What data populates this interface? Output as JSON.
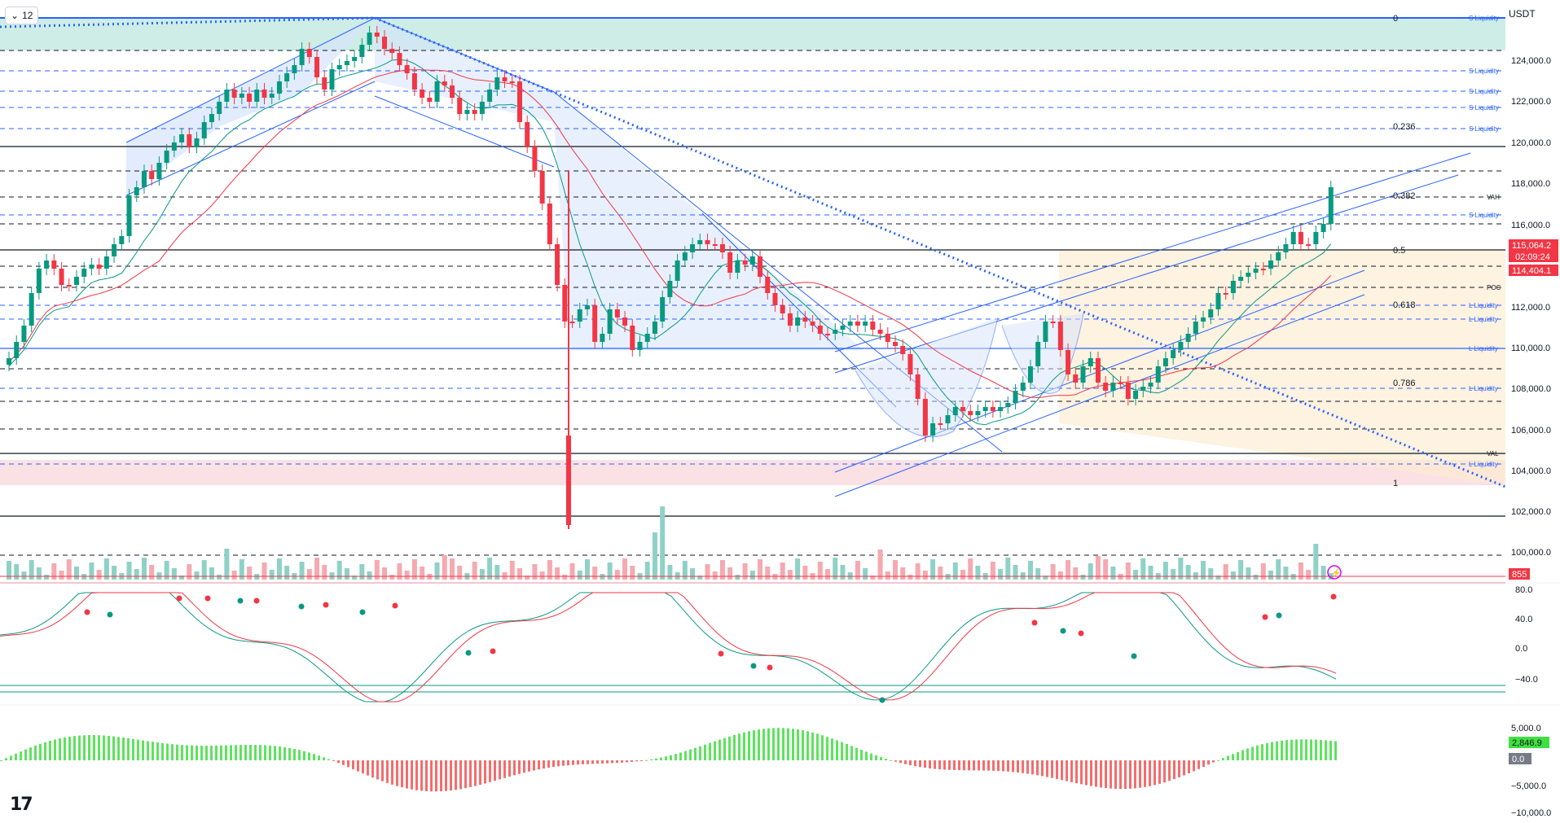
{
  "toolbar": {
    "interval": "12"
  },
  "currency": "USDT",
  "colors": {
    "up": "#089981",
    "down": "#f23645",
    "teal": "#26a69a"
  },
  "price_axis_labels": [
    "124,000.0",
    "122,000.0",
    "120,000.0",
    "118,000.0",
    "116,000.0",
    "112,000.0",
    "110,000.0",
    "108,000.0",
    "106,000.0",
    "104,000.0",
    "102,000.0",
    "100,000.0"
  ],
  "price_badges": {
    "last": "115,064.2",
    "countdown": "02:09:24",
    "ma": "114,404.1",
    "volume": "855"
  },
  "fib_labels": [
    "0",
    "0.236",
    "0.382",
    "0.5",
    "0.618",
    "0.786",
    "1"
  ],
  "zone_labels": [
    "VAH",
    "POC",
    "VAL"
  ],
  "liquidity_labels": [
    "S Liquidity",
    "S Liquidity",
    "S Liquidity",
    "S Liquidity",
    "S Liquidity",
    "S Liquidity",
    "L Liquidity",
    "L Liquidity",
    "L Liquidity",
    "L Liquidity",
    "L Liquidity"
  ],
  "stoch_axis_labels": [
    "80.0",
    "40.0",
    "0.0",
    "−40.0"
  ],
  "macd_axis_labels": [
    "5,000.0",
    "−5,000.0",
    "−10,000.0"
  ],
  "macd_badges": {
    "value": "2,846.9",
    "zero": "0.0"
  },
  "logo": "17"
}
